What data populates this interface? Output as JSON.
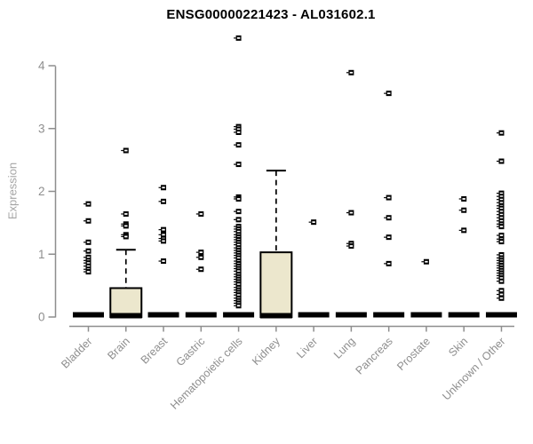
{
  "title": "ENSG00000221423 - AL031602.1",
  "y_axis": {
    "label": "Expression",
    "ticks": [
      "0",
      "1",
      "2",
      "3",
      "4"
    ]
  },
  "chart_data": {
    "type": "boxplot",
    "title": "ENSG00000221423 - AL031602.1",
    "xlabel": "",
    "ylabel": "Expression",
    "ylim": [
      0,
      4
    ],
    "yticks": [
      0,
      1,
      2,
      3,
      4
    ],
    "grid": false,
    "legend": "none",
    "categories": [
      "Bladder",
      "Brain",
      "Breast",
      "Gastric",
      "Hematopoietic cells",
      "Kidney",
      "Liver",
      "Lung",
      "Pancreas",
      "Prostate",
      "Skin",
      "Unknown / Other"
    ],
    "series": [
      {
        "category": "Bladder",
        "q1": 0,
        "median": 0,
        "q3": 0,
        "whisker_low": 0,
        "whisker_high": 0,
        "outliers": [
          1.8,
          1.53,
          1.19,
          1.05,
          0.95,
          0.9,
          0.86,
          0.81,
          0.76,
          0.72
        ]
      },
      {
        "category": "Brain",
        "q1": 0,
        "median": 0,
        "q3": 0.46,
        "whisker_low": 0,
        "whisker_high": 1.07,
        "outliers": [
          2.65,
          1.64,
          1.48,
          1.45,
          1.31,
          1.28
        ]
      },
      {
        "category": "Breast",
        "q1": 0,
        "median": 0,
        "q3": 0,
        "whisker_low": 0,
        "whisker_high": 0,
        "outliers": [
          2.06,
          1.84,
          1.39,
          1.31,
          1.25,
          1.21,
          0.89
        ]
      },
      {
        "category": "Gastric",
        "q1": 0,
        "median": 0,
        "q3": 0,
        "whisker_low": 0,
        "whisker_high": 0,
        "outliers": [
          1.64,
          1.03,
          0.95,
          0.76
        ]
      },
      {
        "category": "Hematopoietic cells",
        "q1": 0,
        "median": 0,
        "q3": 0,
        "whisker_low": 0,
        "whisker_high": 0,
        "outliers": [
          4.44,
          3.03,
          2.99,
          2.94,
          2.74,
          2.43,
          1.91,
          1.88,
          1.68,
          1.55,
          1.44,
          1.4,
          1.36,
          1.31,
          1.27,
          1.23,
          1.19,
          1.15,
          1.1,
          1.06,
          1.02,
          0.98,
          0.94,
          0.89,
          0.85,
          0.81,
          0.77,
          0.73,
          0.68,
          0.64,
          0.6,
          0.56,
          0.52,
          0.47,
          0.43,
          0.39,
          0.35,
          0.3,
          0.26,
          0.22,
          0.18
        ]
      },
      {
        "category": "Kidney",
        "q1": 0,
        "median": 0,
        "q3": 1.03,
        "whisker_low": 0,
        "whisker_high": 2.33,
        "outliers": []
      },
      {
        "category": "Liver",
        "q1": 0,
        "median": 0,
        "q3": 0,
        "whisker_low": 0,
        "whisker_high": 0,
        "outliers": [
          1.51
        ]
      },
      {
        "category": "Lung",
        "q1": 0,
        "median": 0,
        "q3": 0,
        "whisker_low": 0,
        "whisker_high": 0,
        "outliers": [
          3.89,
          1.66,
          1.17,
          1.13
        ]
      },
      {
        "category": "Pancreas",
        "q1": 0,
        "median": 0,
        "q3": 0,
        "whisker_low": 0,
        "whisker_high": 0,
        "outliers": [
          3.56,
          1.9,
          1.58,
          1.27,
          0.85
        ]
      },
      {
        "category": "Prostate",
        "q1": 0,
        "median": 0,
        "q3": 0,
        "whisker_low": 0,
        "whisker_high": 0,
        "outliers": [
          0.88
        ]
      },
      {
        "category": "Skin",
        "q1": 0,
        "median": 0,
        "q3": 0,
        "whisker_low": 0,
        "whisker_high": 0,
        "outliers": [
          1.88,
          1.7,
          1.38
        ]
      },
      {
        "category": "Unknown / Other",
        "q1": 0,
        "median": 0,
        "q3": 0,
        "whisker_low": 0,
        "whisker_high": 0,
        "outliers": [
          2.93,
          2.48,
          1.97,
          1.92,
          1.87,
          1.82,
          1.77,
          1.73,
          1.68,
          1.63,
          1.58,
          1.53,
          1.48,
          1.44,
          1.3,
          1.24,
          1.2,
          0.99,
          0.94,
          0.9,
          0.86,
          0.82,
          0.78,
          0.74,
          0.7,
          0.66,
          0.62,
          0.57,
          0.42,
          0.36,
          0.3
        ]
      }
    ]
  },
  "colors": {
    "background": "#ffffff",
    "box_fill": "#ece7cd",
    "box_stroke": "#000000",
    "median": "#000000",
    "outlier": "#000000",
    "axis": "#8e8e8e",
    "tick_label": "#8e8e8e",
    "title": "#000000",
    "ylabel": "#a5a5a5"
  }
}
